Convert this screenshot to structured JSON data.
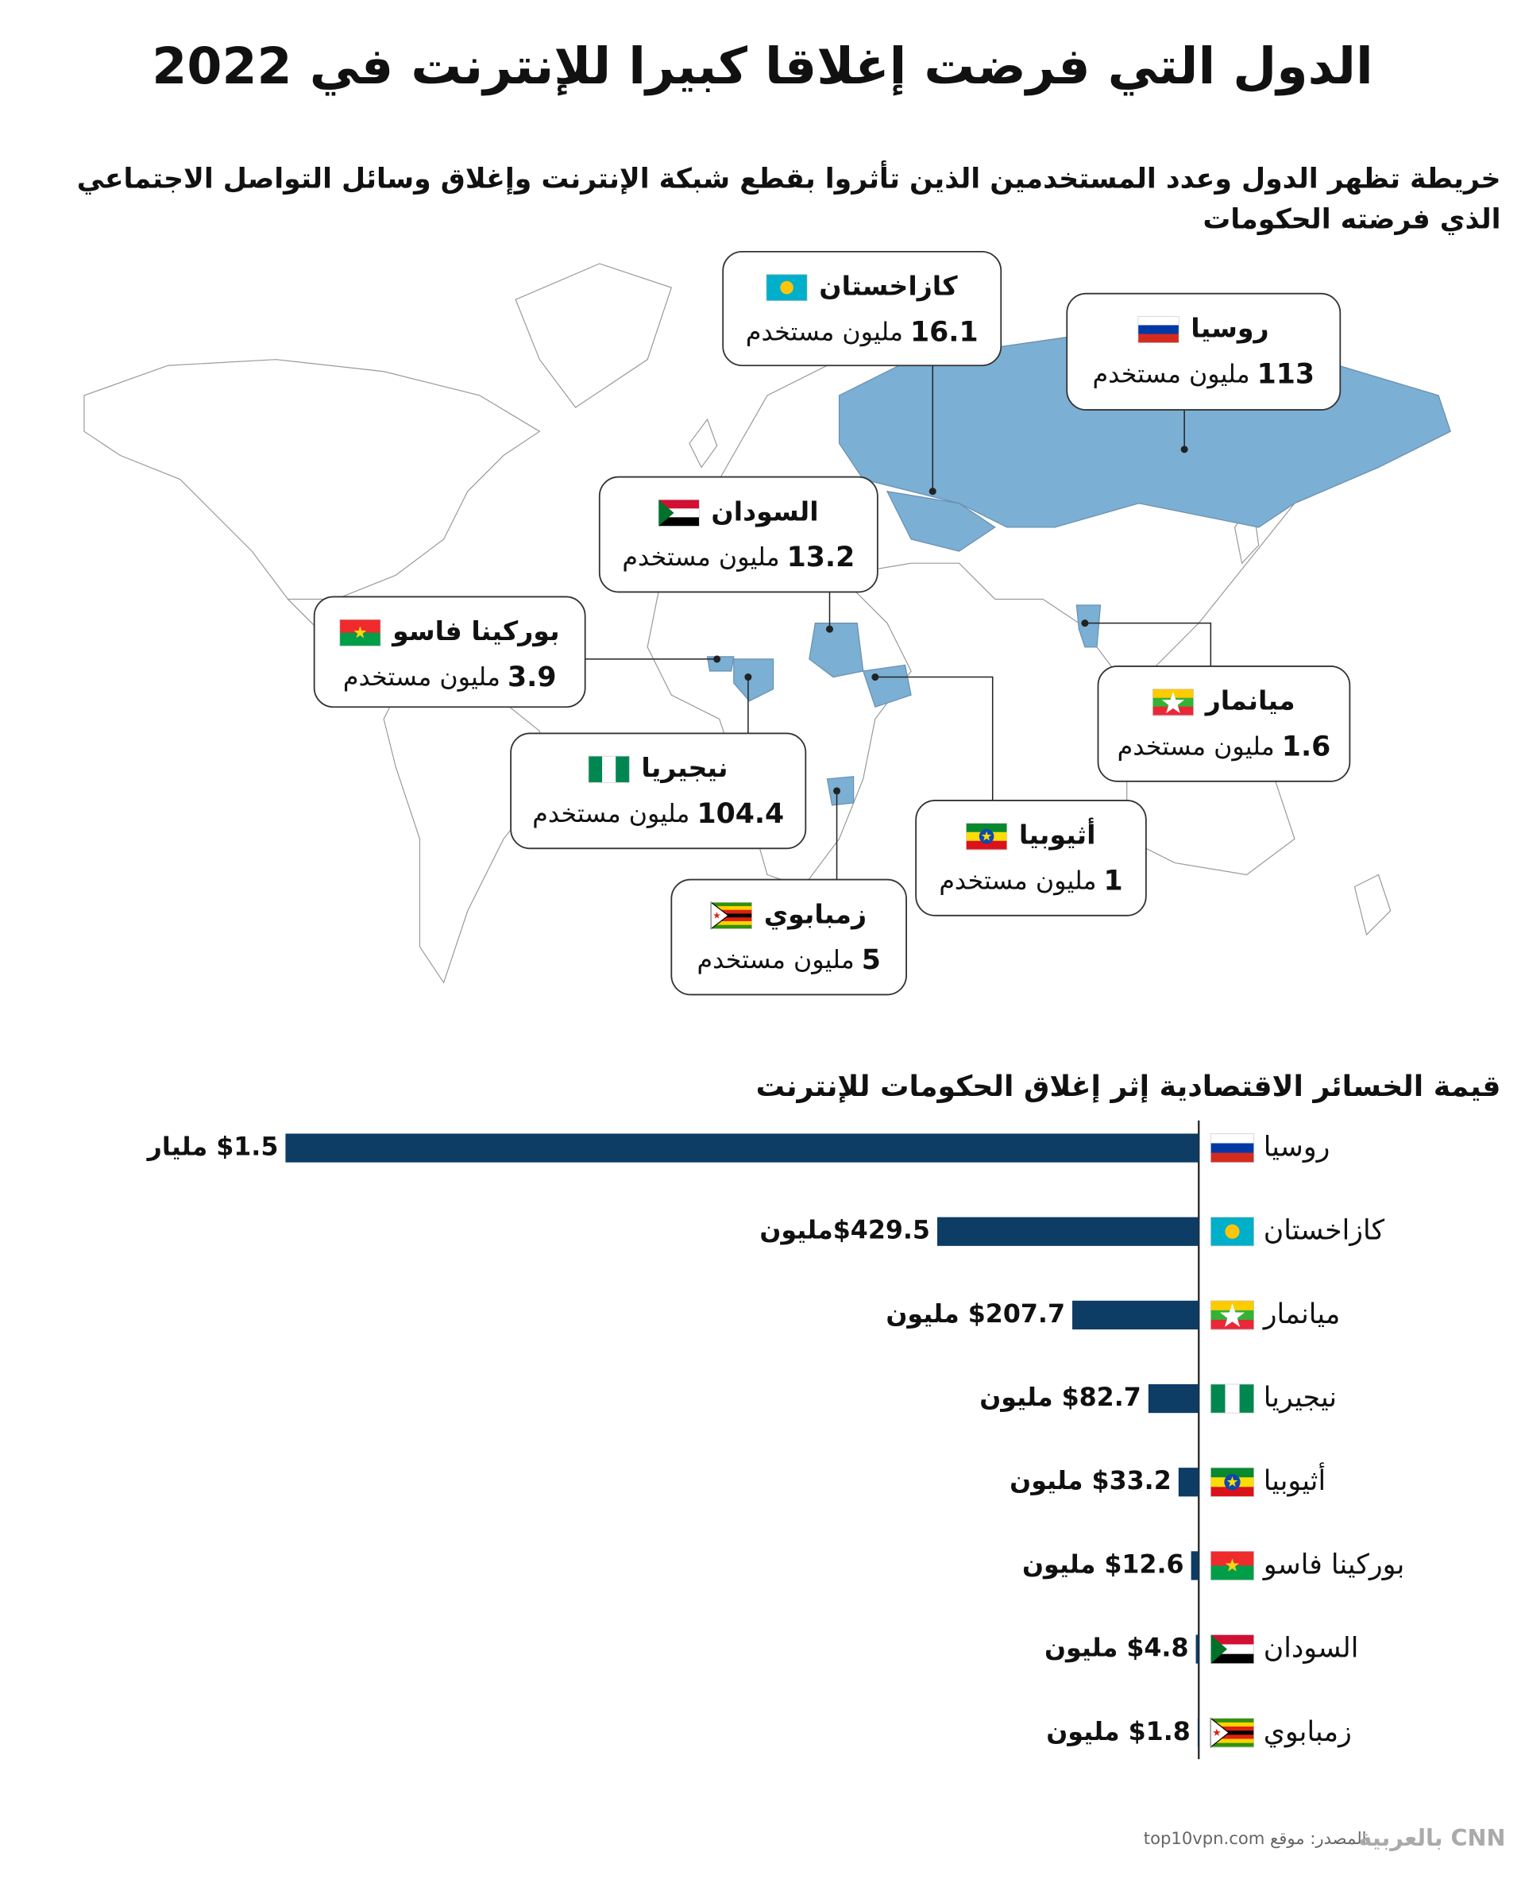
{
  "title": "الدول التي فرضت إغلاقا كبيرا للإنترنت في 2022",
  "subtitle": [
    "خريطة تظهر الدول وعدد المستخدمين الذين تأثروا بقطع شبكة الإنترنت وإغلاق وسائل التواصل الاجتماعي",
    "الذي فرضته الحكومات"
  ],
  "map": {
    "users_unit": "مليون مستخدم",
    "callouts": [
      {
        "name": "كازاخستان",
        "value": 16.1
      },
      {
        "name": "روسيا",
        "value": 113
      },
      {
        "name": "السودان",
        "value": 13.2
      },
      {
        "name": "بوركينا فاسو",
        "value": 3.9
      },
      {
        "name": "نيجيريا",
        "value": 104.4
      },
      {
        "name": "ميانمار",
        "value": 1.6
      },
      {
        "name": "أثيوبيا",
        "value": 1
      },
      {
        "name": "زمبابوي",
        "value": 5
      }
    ]
  },
  "chart_data": {
    "type": "bar",
    "orientation": "horizontal",
    "title": "قيمة الخسائر الاقتصادية إثر إغلاق الحكومات للإنترنت",
    "categories": [
      "روسيا",
      "كازاخستان",
      "ميانمار",
      "نيجيريا",
      "أثيوبيا",
      "بوركينا فاسو",
      "السودان",
      "زمبابوي"
    ],
    "values": [
      1500,
      429.5,
      207.7,
      82.7,
      33.2,
      12.6,
      4.8,
      1.8
    ],
    "value_labels": [
      "$1.5 مليار",
      "$429.5مليون",
      "$207.7 مليون",
      "$82.7 مليون",
      "$33.2 مليون",
      "$12.6 مليون",
      "$4.8 مليون",
      "$1.8 مليون"
    ],
    "color": "#0d3c64",
    "xlim": [
      0,
      1500
    ]
  },
  "source": "المصدر: موقع top10vpn.com",
  "logo": "CNN بالعربية"
}
